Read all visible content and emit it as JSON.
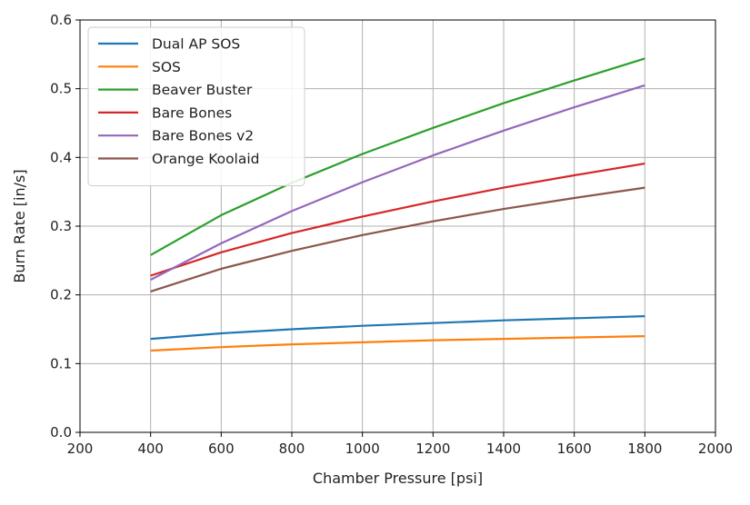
{
  "chart_data": {
    "type": "line",
    "title": "",
    "xlabel": "Chamber Pressure [psi]",
    "ylabel": "Burn Rate [in/s]",
    "xlim": [
      200,
      2000
    ],
    "ylim": [
      0.0,
      0.6
    ],
    "xticks": [
      "200",
      "400",
      "600",
      "800",
      "1000",
      "1200",
      "1400",
      "1600",
      "1800",
      "2000"
    ],
    "yticks": [
      "0.0",
      "0.1",
      "0.2",
      "0.3",
      "0.4",
      "0.5",
      "0.6"
    ],
    "grid": true,
    "legend_position": "upper-left",
    "x": [
      400,
      600,
      800,
      1000,
      1200,
      1400,
      1600,
      1800
    ],
    "series": [
      {
        "name": "Dual AP SOS",
        "color": "#1f77b4",
        "values": [
          0.136,
          0.144,
          0.15,
          0.155,
          0.159,
          0.163,
          0.166,
          0.169
        ]
      },
      {
        "name": "SOS",
        "color": "#ff7f0e",
        "values": [
          0.119,
          0.124,
          0.128,
          0.131,
          0.134,
          0.136,
          0.138,
          0.14
        ]
      },
      {
        "name": "Beaver Buster",
        "color": "#2ca02c",
        "values": [
          0.258,
          0.316,
          0.363,
          0.405,
          0.443,
          0.479,
          0.512,
          0.544
        ]
      },
      {
        "name": "Bare Bones",
        "color": "#d62728",
        "values": [
          0.228,
          0.262,
          0.29,
          0.314,
          0.336,
          0.356,
          0.374,
          0.391
        ]
      },
      {
        "name": "Bare Bones v2",
        "color": "#9467bd",
        "values": [
          0.222,
          0.275,
          0.322,
          0.364,
          0.403,
          0.439,
          0.473,
          0.505
        ]
      },
      {
        "name": "Orange Koolaid",
        "color": "#8c564b",
        "values": [
          0.205,
          0.238,
          0.264,
          0.287,
          0.307,
          0.325,
          0.341,
          0.356
        ]
      }
    ]
  }
}
